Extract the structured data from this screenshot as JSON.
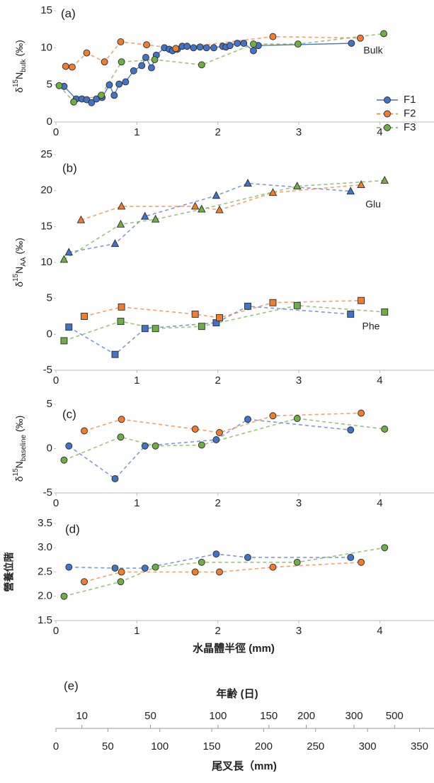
{
  "chart_data": [
    {
      "type": "line",
      "panel_label": "(a)",
      "ylabel_parts": [
        "δ",
        "15",
        "N",
        "bulk",
        " (‰)"
      ],
      "annotation": "Bulk",
      "xlim": [
        0,
        4.67
      ],
      "xticks": [
        0,
        1,
        2,
        3,
        4
      ],
      "ylim": [
        0,
        15
      ],
      "yticks": [
        0,
        5,
        10,
        15
      ],
      "legend": "right",
      "marker": "circle",
      "series": [
        {
          "name": "F1",
          "color": "#4472c4",
          "dashed": false,
          "x": [
            0.1,
            0.25,
            0.32,
            0.38,
            0.44,
            0.5,
            0.57,
            0.66,
            0.72,
            0.78,
            0.86,
            0.96,
            1.06,
            1.11,
            1.18,
            1.24,
            1.34,
            1.4,
            1.44,
            1.5,
            1.56,
            1.62,
            1.7,
            1.78,
            1.86,
            1.95,
            2.06,
            2.1,
            2.15,
            2.24,
            2.32,
            2.44,
            2.5,
            3.65
          ],
          "values": [
            4.8,
            3.1,
            3.1,
            3.0,
            2.6,
            3.1,
            3.3,
            5.0,
            3.6,
            5.1,
            5.4,
            6.9,
            7.6,
            8.7,
            7.3,
            9.0,
            10.0,
            9.8,
            9.6,
            9.8,
            10.2,
            10.2,
            10.0,
            10.1,
            10.0,
            10.0,
            10.2,
            10.1,
            10.3,
            10.6,
            10.6,
            9.6,
            10.3,
            10.6
          ]
        },
        {
          "name": "F2",
          "color": "#ed7d31",
          "dashed": true,
          "x": [
            0.12,
            0.2,
            0.38,
            0.6,
            0.8,
            1.12,
            1.48,
            2.68,
            3.76
          ],
          "values": [
            7.5,
            7.4,
            9.3,
            8.1,
            10.8,
            10.4,
            9.9,
            11.5,
            11.3
          ]
        },
        {
          "name": "F3",
          "color": "#70ad47",
          "dashed": true,
          "x": [
            0.04,
            0.22,
            0.56,
            0.81,
            1.22,
            1.8,
            2.44,
            2.99,
            4.05
          ],
          "values": [
            4.9,
            2.7,
            3.6,
            8.1,
            8.4,
            7.7,
            10.5,
            10.5,
            11.9
          ]
        }
      ]
    },
    {
      "type": "line",
      "panel_label": "(b)",
      "ylabel_parts": [
        "δ",
        "15",
        "N",
        "AA",
        " (‰)"
      ],
      "xlim": [
        0,
        4.67
      ],
      "xticks": [
        0,
        1,
        2,
        3,
        4
      ],
      "ylim": [
        -5,
        25
      ],
      "yticks": [
        -5,
        0,
        5,
        10,
        15,
        20,
        25
      ],
      "groups": [
        {
          "label": "Glu",
          "marker": "triangle",
          "series": [
            {
              "color": "#4472c4",
              "dashed": true,
              "x": [
                0.16,
                0.73,
                1.1,
                1.98,
                2.37,
                3.64
              ],
              "values": [
                11.4,
                12.6,
                16.4,
                19.3,
                21.0,
                19.9
              ]
            },
            {
              "color": "#ed7d31",
              "dashed": true,
              "x": [
                0.31,
                0.81,
                1.72,
                2.02,
                2.68,
                3.77
              ],
              "values": [
                15.9,
                17.8,
                17.8,
                17.3,
                19.7,
                20.8
              ]
            },
            {
              "color": "#70ad47",
              "dashed": true,
              "x": [
                0.1,
                0.8,
                1.23,
                1.8,
                2.98,
                4.06
              ],
              "values": [
                10.4,
                15.3,
                16.0,
                17.4,
                20.6,
                21.4
              ]
            }
          ]
        },
        {
          "label": "Phe",
          "marker": "square",
          "series": [
            {
              "color": "#4472c4",
              "dashed": true,
              "x": [
                0.16,
                0.73,
                1.1,
                1.98,
                2.37,
                3.64
              ],
              "values": [
                1.0,
                -2.8,
                0.8,
                1.6,
                3.9,
                2.8
              ]
            },
            {
              "color": "#ed7d31",
              "dashed": true,
              "x": [
                0.35,
                0.81,
                1.72,
                2.02,
                2.68,
                3.77
              ],
              "values": [
                2.5,
                3.8,
                2.8,
                2.3,
                4.4,
                4.7
              ]
            },
            {
              "color": "#70ad47",
              "dashed": true,
              "x": [
                0.1,
                0.8,
                1.23,
                1.8,
                2.98,
                4.06
              ],
              "values": [
                -0.9,
                1.8,
                0.8,
                1.1,
                4.0,
                3.1
              ]
            }
          ]
        }
      ]
    },
    {
      "type": "line",
      "panel_label": "(c)",
      "ylabel_parts": [
        "δ",
        "15",
        "N",
        "baseline",
        " (‰)"
      ],
      "xlim": [
        0,
        4.67
      ],
      "xticks": [
        0,
        1,
        2,
        3,
        4
      ],
      "ylim": [
        -5,
        5
      ],
      "yticks": [
        -5,
        0,
        5
      ],
      "marker": "circle",
      "series": [
        {
          "color": "#4472c4",
          "dashed": true,
          "x": [
            0.16,
            0.73,
            1.1,
            1.98,
            2.37,
            3.64
          ],
          "values": [
            0.3,
            -3.4,
            0.3,
            1.0,
            3.3,
            2.1
          ]
        },
        {
          "color": "#ed7d31",
          "dashed": true,
          "x": [
            0.35,
            0.81,
            1.72,
            2.02,
            2.68,
            3.77
          ],
          "values": [
            2.0,
            3.3,
            2.2,
            1.8,
            3.7,
            4.0
          ]
        },
        {
          "color": "#70ad47",
          "dashed": true,
          "x": [
            0.1,
            0.8,
            1.23,
            1.8,
            2.98,
            4.06
          ],
          "values": [
            -1.3,
            1.3,
            0.3,
            0.4,
            3.4,
            2.2
          ]
        }
      ]
    },
    {
      "type": "line",
      "panel_label": "(d)",
      "ylabel": "營養位階",
      "xlabel": "水晶體半徑 (mm)",
      "xlim": [
        0,
        4.67
      ],
      "xticks": [
        0,
        1,
        2,
        3,
        4
      ],
      "ylim": [
        1.5,
        3.5
      ],
      "yticks": [
        {
          "value": 1.5,
          "label": "1.5"
        },
        {
          "value": 2,
          "label": "2.0"
        },
        {
          "value": 2.5,
          "label": "2.5"
        },
        {
          "value": 3,
          "label": "3.0"
        },
        {
          "value": 3.5,
          "label": "3.5"
        }
      ],
      "marker": "circle",
      "series": [
        {
          "color": "#4472c4",
          "dashed": true,
          "x": [
            0.16,
            0.73,
            1.1,
            1.98,
            2.37,
            3.64
          ],
          "values": [
            2.6,
            2.58,
            2.58,
            2.87,
            2.8,
            2.8
          ]
        },
        {
          "color": "#ed7d31",
          "dashed": true,
          "x": [
            0.35,
            0.81,
            1.72,
            2.02,
            2.68,
            3.77
          ],
          "values": [
            2.3,
            2.5,
            2.5,
            2.5,
            2.6,
            2.7
          ]
        },
        {
          "color": "#70ad47",
          "dashed": true,
          "x": [
            0.1,
            0.8,
            1.23,
            1.8,
            2.98,
            4.06
          ],
          "values": [
            2.0,
            2.3,
            2.6,
            2.7,
            2.7,
            3.0
          ]
        }
      ]
    },
    {
      "type": "axis",
      "panel_label": "(e)",
      "top_label": "年齢 (日)",
      "age_ticks": {
        "ages": [
          10,
          50,
          100,
          150,
          200,
          300,
          500
        ],
        "fork_length": [
          25,
          91,
          156,
          205,
          241,
          287,
          326
        ]
      },
      "xlim": [
        0,
        364
      ],
      "xticks": [
        0,
        50,
        100,
        150,
        200,
        250,
        300,
        350
      ],
      "xlabel": "尾叉長（mm)"
    }
  ]
}
